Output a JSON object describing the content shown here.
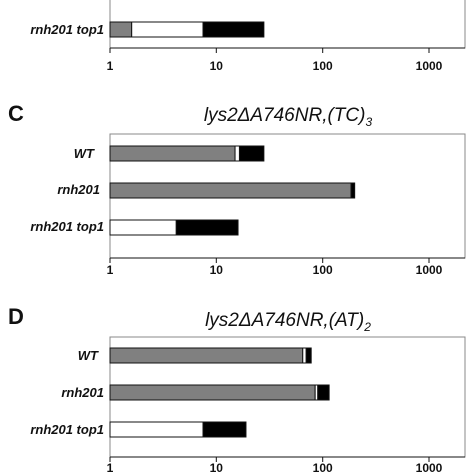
{
  "colors": {
    "gray": "#808080",
    "white": "#ffffff",
    "black": "#000000"
  },
  "chart_data": [
    {
      "type": "bar",
      "orientation": "horizontal",
      "stacked": true,
      "x_scale": "log",
      "xlim": [
        1,
        1000
      ],
      "x_ticks": [
        "1",
        "10",
        "100",
        "1000"
      ],
      "panel_letter": "",
      "title": "",
      "categories": [
        "rnh201 top1"
      ],
      "series": [
        {
          "color": "gray",
          "values": [
            1.6
          ]
        },
        {
          "color": "white",
          "values": [
            7.5
          ]
        },
        {
          "color": "black",
          "values": [
            28
          ]
        }
      ]
    },
    {
      "type": "bar",
      "orientation": "horizontal",
      "stacked": true,
      "x_scale": "log",
      "xlim": [
        1,
        1000
      ],
      "x_ticks": [
        "1",
        "10",
        "100",
        "1000"
      ],
      "panel_letter": "C",
      "title": "lys2ΔA746NR,(TC)",
      "title_subscript": "3",
      "categories": [
        "WT",
        "rnh201",
        "rnh201 top1"
      ],
      "series": [
        {
          "color": "gray",
          "values": [
            15,
            185,
            0
          ]
        },
        {
          "color": "white",
          "values": [
            16.5,
            0,
            4.2
          ]
        },
        {
          "color": "black",
          "values": [
            28,
            200,
            16
          ]
        }
      ]
    },
    {
      "type": "bar",
      "orientation": "horizontal",
      "stacked": true,
      "x_scale": "log",
      "xlim": [
        1,
        1000
      ],
      "x_ticks": [
        "1",
        "10",
        "100",
        "1000"
      ],
      "panel_letter": "D",
      "title": "lys2ΔA746NR,(AT)",
      "title_subscript": "2",
      "categories": [
        "WT",
        "rnh201",
        "rnh201 top1"
      ],
      "series": [
        {
          "color": "gray",
          "values": [
            65,
            85,
            0
          ]
        },
        {
          "color": "white",
          "values": [
            70,
            90,
            7.5
          ]
        },
        {
          "color": "black",
          "values": [
            78,
            115,
            19
          ]
        }
      ]
    }
  ]
}
